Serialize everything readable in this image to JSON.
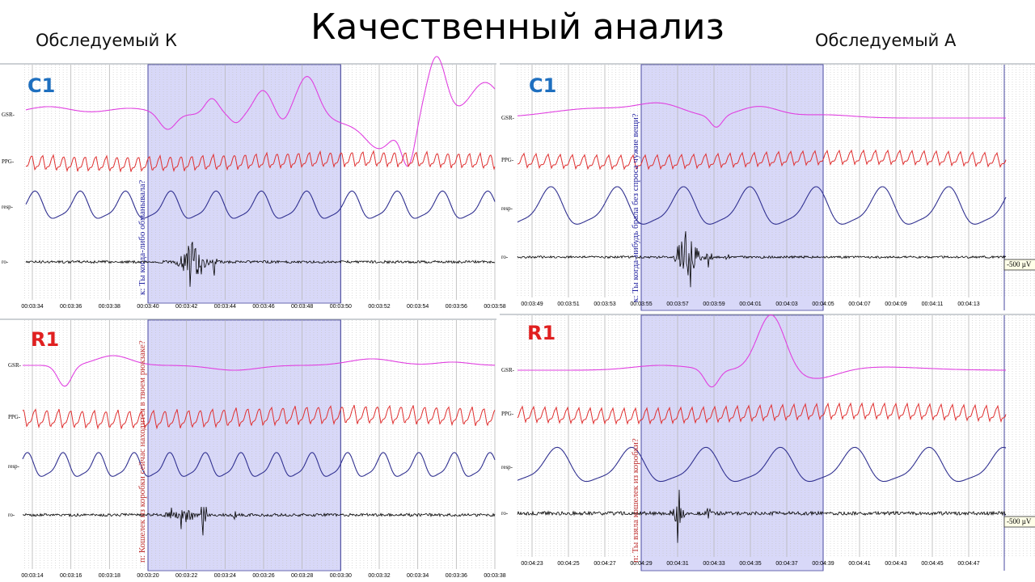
{
  "slide": {
    "title": "Качественный анализ",
    "subject_left": "Обследуемый К",
    "subject_right": "Обследуемый А"
  },
  "colors": {
    "gsr": "#e040e0",
    "ppg": "#e03030",
    "resp": "#303090",
    "ro": "#000000",
    "highlight": "#d8d8f8",
    "c_label": "#1e6fbf",
    "r_label": "#e02020"
  },
  "chart_data": [
    {
      "id": "k-c1",
      "type": "line",
      "label": "C1",
      "label_color": "c_label",
      "channels": [
        "GSR",
        "PPG",
        "resp",
        "ro"
      ],
      "x_ticks": [
        "00:03:34",
        "00:03:36",
        "00:03:38",
        "00:03:40",
        "00:03:42",
        "00:03:44",
        "00:03:46",
        "00:03:48",
        "00:03:50",
        "00:03:52",
        "00:03:54",
        "00:03:56",
        "00:03:58"
      ],
      "question": "к: Ты когда-либо обманывала?",
      "question_color": "#2020a0",
      "highlight_range": [
        "00:03:40",
        "00:03:50"
      ],
      "scale_label": ""
    },
    {
      "id": "a-c1",
      "type": "line",
      "label": "C1",
      "label_color": "c_label",
      "channels": [
        "GSR",
        "PPG",
        "resp",
        "ro"
      ],
      "x_ticks": [
        "00:03:49",
        "00:03:51",
        "00:03:53",
        "00:03:55",
        "00:03:57",
        "00:03:59",
        "00:04:01",
        "00:04:03",
        "00:04:05",
        "00:04:07",
        "00:04:09",
        "00:04:11",
        "00:04:13"
      ],
      "question": "к: Ты когда-нибудь брала без спроса чужие вещи?",
      "question_color": "#2020a0",
      "highlight_range": [
        "00:03:55",
        "00:04:05"
      ],
      "scale_label": "-500 µV"
    },
    {
      "id": "k-r1",
      "type": "line",
      "label": "R1",
      "label_color": "r_label",
      "channels": [
        "GSR",
        "PPG",
        "resp",
        "ro"
      ],
      "x_ticks": [
        "00:03:14",
        "00:03:16",
        "00:03:18",
        "00:03:20",
        "00:03:22",
        "00:03:24",
        "00:03:26",
        "00:03:28",
        "00:03:30",
        "00:03:32",
        "00:03:34",
        "00:03:36",
        "00:03:38"
      ],
      "question": "п: Кошелек из коробки сейчас находится в твоем рюкзаке?",
      "question_color": "#c03030",
      "highlight_range": [
        "00:03:20",
        "00:03:30"
      ],
      "scale_label": ""
    },
    {
      "id": "a-r1",
      "type": "line",
      "label": "R1",
      "label_color": "r_label",
      "channels": [
        "GSR",
        "PPG",
        "resp",
        "ro"
      ],
      "x_ticks": [
        "00:04:23",
        "00:04:25",
        "00:04:27",
        "00:04:29",
        "00:04:31",
        "00:04:33",
        "00:04:35",
        "00:04:37",
        "00:04:39",
        "00:04:41",
        "00:04:43",
        "00:04:45",
        "00:04:47"
      ],
      "question": "п: Ты взяла кошелек из коробки?",
      "question_color": "#c03030",
      "highlight_range": [
        "00:04:29",
        "00:04:39"
      ],
      "scale_label": "-500 µV"
    }
  ]
}
